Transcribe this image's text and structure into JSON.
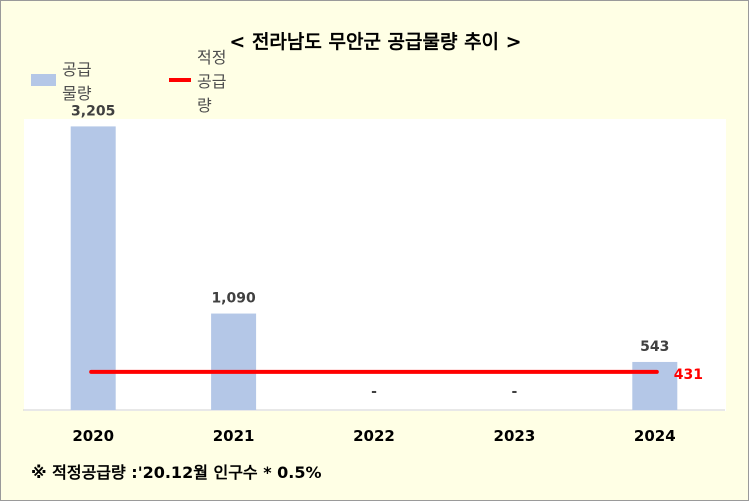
{
  "title": "< 전라남도 무안군 공급물량 추이 >",
  "legend": {
    "bar_label": "공급물량",
    "line_label": "적정공급량"
  },
  "footnote": "※ 적정공급량 :'20.12월 인구수 * 0.5%",
  "colors": {
    "background": "#FFFFE5",
    "bar": "#B4C7E7",
    "line": "#FF0000",
    "label": "#404040",
    "line_label": "#FF0000"
  },
  "chart_data": {
    "type": "bar",
    "categories": [
      "2020",
      "2021",
      "2022",
      "2023",
      "2024"
    ],
    "series": [
      {
        "name": "공급물량",
        "type": "bar",
        "values": [
          3205,
          1090,
          0,
          0,
          543
        ],
        "labels": [
          "3,205",
          "1,090",
          "-",
          "-",
          "543"
        ]
      },
      {
        "name": "적정공급량",
        "type": "line",
        "values": [
          431,
          431,
          431,
          431,
          431
        ],
        "end_label": "431"
      }
    ],
    "ylim": [
      0,
      3300
    ],
    "grid": false,
    "legend_position": "top-left"
  }
}
